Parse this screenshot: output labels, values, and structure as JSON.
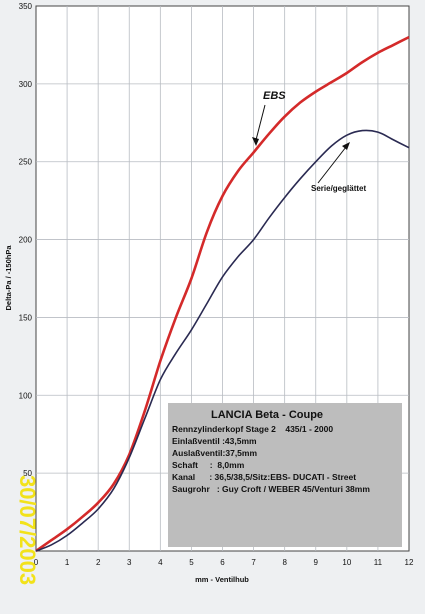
{
  "chart_data": {
    "type": "line",
    "xlabel": "mm - Ventilhub",
    "ylabel": "Delta-Pa / -150hPa",
    "xlim": [
      0,
      12
    ],
    "ylim": [
      0,
      350
    ],
    "x_ticks": [
      0,
      1,
      2,
      3,
      4,
      5,
      6,
      7,
      8,
      9,
      10,
      11,
      12
    ],
    "y_ticks": [
      0,
      50,
      100,
      150,
      200,
      250,
      300,
      350
    ],
    "grid": true,
    "series": [
      {
        "name": "EBS",
        "color": "#d42a2a",
        "x": [
          0,
          0.5,
          1,
          1.5,
          2,
          2.5,
          3,
          3.5,
          4,
          4.5,
          5,
          5.5,
          6,
          6.5,
          7,
          7.5,
          8,
          8.5,
          9,
          9.5,
          10,
          10.5,
          11,
          11.5,
          12
        ],
        "y": [
          0,
          7,
          14,
          22,
          31,
          43,
          62,
          90,
          122,
          150,
          175,
          205,
          228,
          244,
          256,
          268,
          279,
          288,
          295,
          301,
          307,
          314,
          320,
          325,
          330
        ]
      },
      {
        "name": "Serie/geglättet",
        "color": "#2a2a52",
        "x": [
          0,
          0.5,
          1,
          1.5,
          2,
          2.5,
          3,
          3.5,
          4,
          4.5,
          5,
          5.5,
          6,
          6.5,
          7,
          7.5,
          8,
          8.5,
          9,
          9.5,
          10,
          10.5,
          11,
          11.5,
          12
        ],
        "y": [
          0,
          4,
          10,
          18,
          27,
          40,
          60,
          85,
          110,
          127,
          142,
          159,
          176,
          189,
          200,
          214,
          227,
          239,
          250,
          260,
          267,
          270,
          269,
          264,
          259
        ]
      }
    ]
  },
  "annotations": {
    "ebs": "EBS",
    "serie": "Serie/geglättet"
  },
  "info_box": {
    "title": "LANCIA Beta - Coupe",
    "lines": [
      "Rennzylinderkopf Stage 2    435/1 - 2000",
      "Einlaßventil :43,5mm",
      "Auslaßventil:37,5mm",
      "Schaft     :  8,0mm",
      "Kanal      : 36,5/38,5/Sitz:EBS- DUCATI - Street",
      "Saugrohr   : Guy Croft / WEBER 45/Venturi 38mm"
    ]
  },
  "date_stamp": "30/07/2003",
  "colors": {
    "background": "#eef0f2",
    "plot_area": "#ffffff",
    "grid": "#b8bcc2",
    "info_box": "#bdbdbd",
    "stamp": "#f2e21a"
  }
}
